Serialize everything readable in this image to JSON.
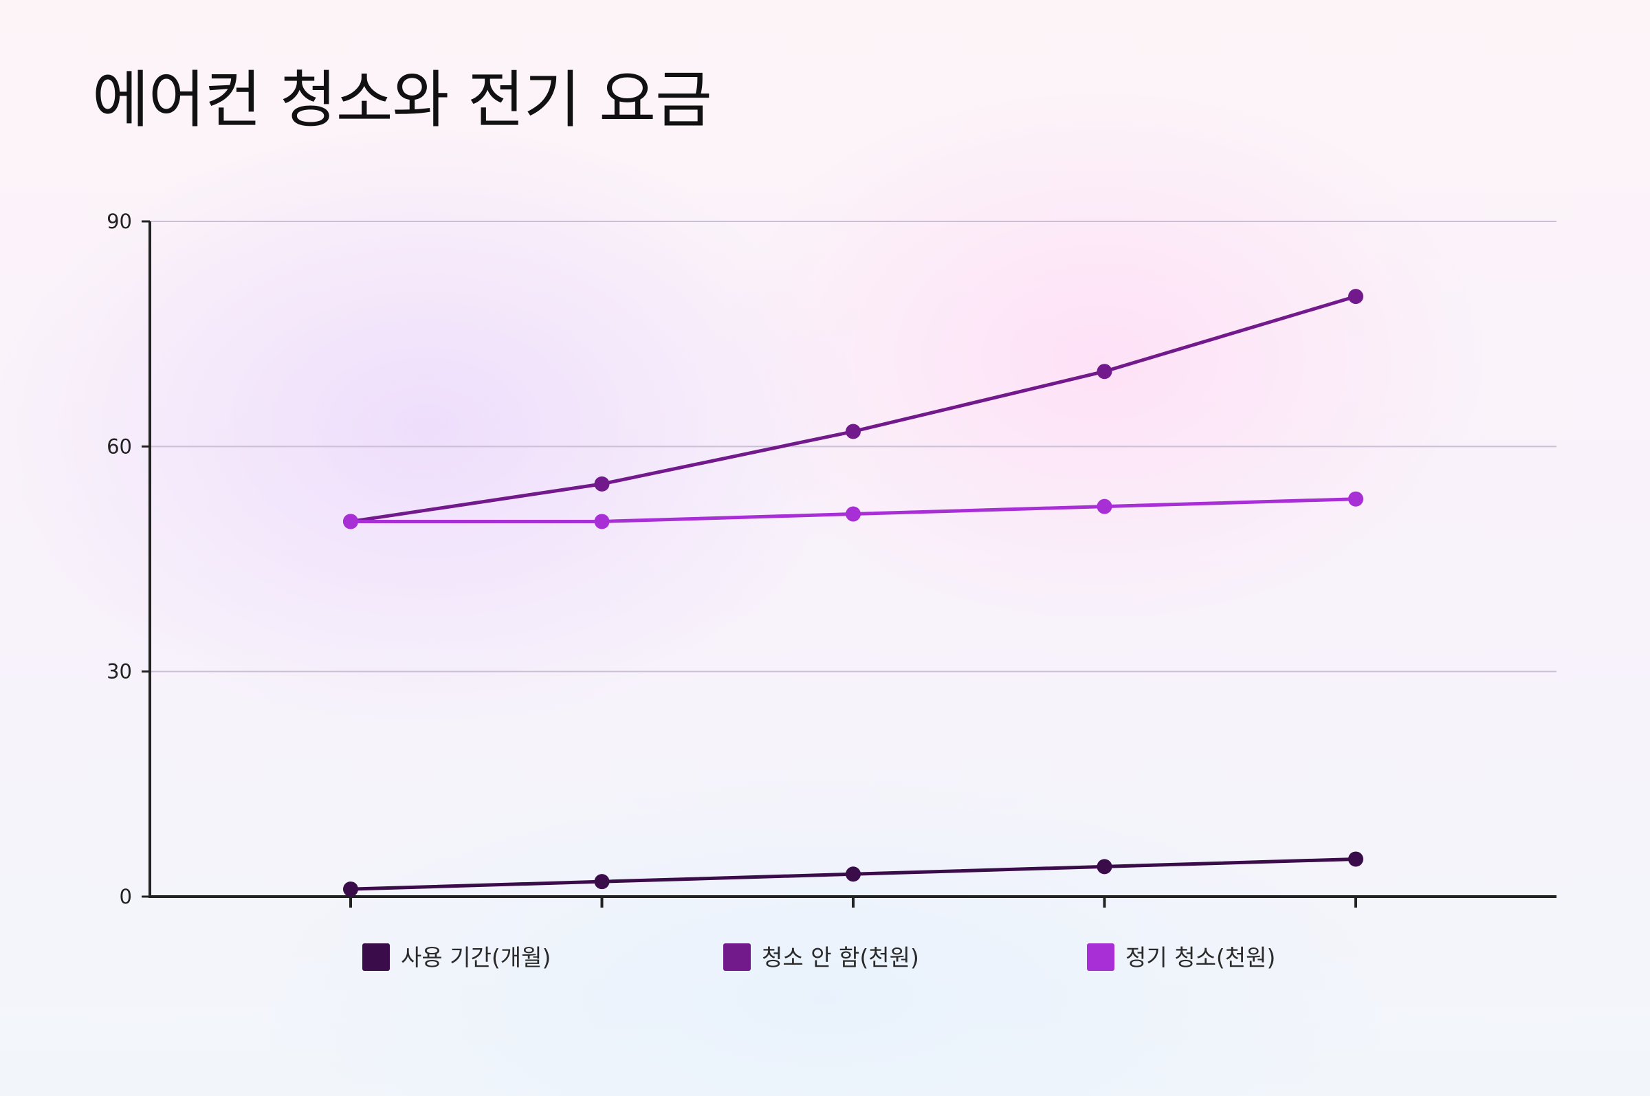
{
  "chart_data": {
    "type": "line",
    "title": "에어컨 청소와 전기 요금",
    "xlabel": "",
    "ylabel": "",
    "categories": [
      "",
      "",
      "",
      "",
      ""
    ],
    "ylim": [
      0,
      90
    ],
    "yticks": [
      0,
      30,
      60,
      90
    ],
    "grid": true,
    "legend_position": "bottom",
    "series": [
      {
        "name": "사용 기간(개월)",
        "color": "#3a0c4a",
        "values": [
          1,
          2,
          3,
          4,
          5
        ]
      },
      {
        "name": "청소 안 함(천원)",
        "color": "#721a8c",
        "values": [
          50,
          55,
          62,
          70,
          80
        ]
      },
      {
        "name": "정기 청소(천원)",
        "color": "#a82fd6",
        "values": [
          50,
          50,
          51,
          52,
          53
        ]
      }
    ]
  }
}
